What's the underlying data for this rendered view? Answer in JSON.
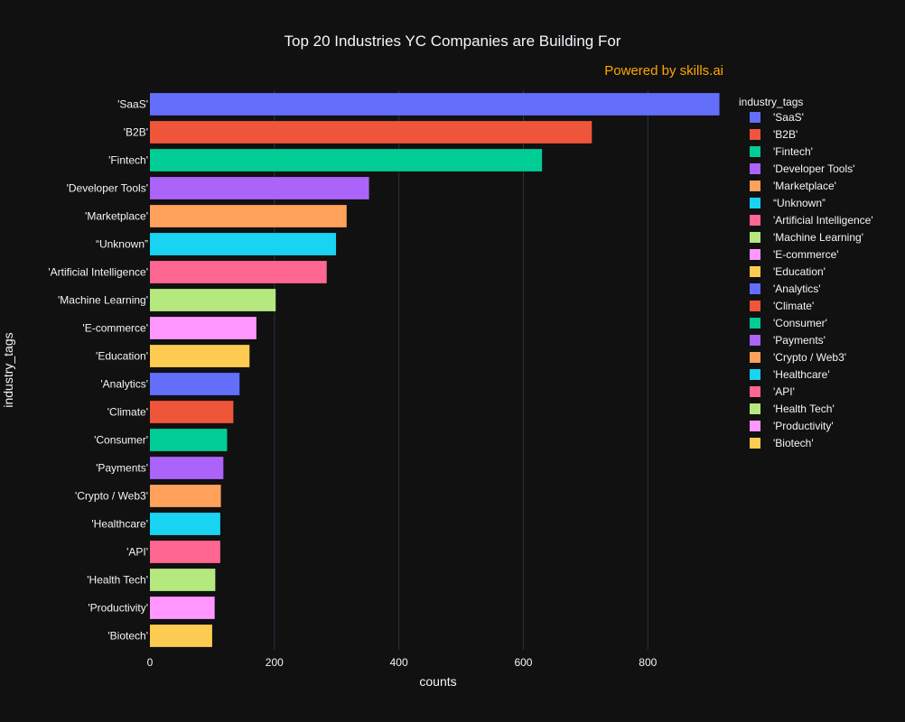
{
  "chart_data": {
    "type": "bar",
    "orientation": "horizontal",
    "title": "Top 20 Industries YC Companies are Building For",
    "subtitle": "Powered by skills.ai",
    "xlabel": "counts",
    "ylabel": "industry_tags",
    "xlim": [
      0,
      920
    ],
    "xticks": [
      0,
      200,
      400,
      600,
      800
    ],
    "grid": true,
    "legend": {
      "title": "industry_tags",
      "position": "right"
    },
    "categories": [
      "'SaaS'",
      "'B2B'",
      "'Fintech'",
      "'Developer Tools'",
      "'Marketplace'",
      "“Unknown”",
      "'Artificial Intelligence'",
      "'Machine Learning'",
      "'E-commerce'",
      "'Education'",
      "'Analytics'",
      "'Climate'",
      "'Consumer'",
      "'Payments'",
      "'Crypto / Web3'",
      "'Healthcare'",
      "'API'",
      "'Health Tech'",
      "'Productivity'",
      "'Biotech'"
    ],
    "values": [
      915,
      710,
      630,
      352,
      316,
      299,
      284,
      202,
      171,
      160,
      144,
      134,
      124,
      118,
      114,
      113,
      113,
      105,
      104,
      100
    ],
    "colors": [
      "#636efa",
      "#ef553b",
      "#00cc96",
      "#ab63fa",
      "#ffa15a",
      "#19d3f3",
      "#ff6692",
      "#b6e880",
      "#ff97ff",
      "#fecb52",
      "#636efa",
      "#ef553b",
      "#00cc96",
      "#ab63fa",
      "#ffa15a",
      "#19d3f3",
      "#ff6692",
      "#b6e880",
      "#ff97ff",
      "#fecb52"
    ],
    "title_color": "#f2f5fa",
    "subtitle_color": "#ffa500",
    "text_color": "#f2f5fa",
    "grid_color": "#283442",
    "background": "#111111"
  }
}
